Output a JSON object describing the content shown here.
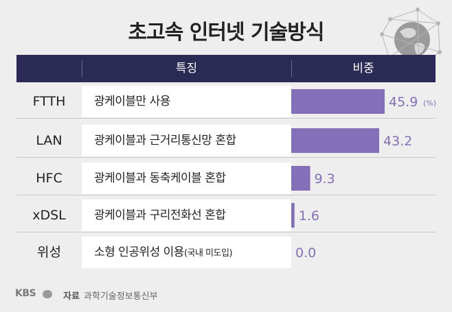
{
  "title": "초고속 인터넷 기술방식",
  "header": {
    "feature": "특징",
    "share": "비중"
  },
  "rows": [
    {
      "name": "FTTH",
      "feature": "광케이블만 사용",
      "feature_note": "",
      "value_label": "45.9",
      "unit": "(%)"
    },
    {
      "name": "LAN",
      "feature": "광케이블과 근거리통신망 혼합",
      "feature_note": "",
      "value_label": "43.2",
      "unit": ""
    },
    {
      "name": "HFC",
      "feature": "광케이블과 동축케이블 혼합",
      "feature_note": "",
      "value_label": "9.3",
      "unit": ""
    },
    {
      "name": "xDSL",
      "feature": "광케이블과 구리전화선 혼합",
      "feature_note": "",
      "value_label": "1.6",
      "unit": ""
    },
    {
      "name": "위성",
      "feature": "소형 인공위성 이용",
      "feature_note": "(국내 미도입)",
      "value_label": "0.0",
      "unit": ""
    }
  ],
  "chart_data": {
    "type": "bar",
    "orientation": "horizontal",
    "title": "초고속 인터넷 기술방식",
    "categories": [
      "FTTH",
      "LAN",
      "HFC",
      "xDSL",
      "위성"
    ],
    "values": [
      45.9,
      43.2,
      9.3,
      1.6,
      0.0
    ],
    "unit": "%",
    "xlim": [
      0,
      50
    ],
    "color": "#8470b8"
  },
  "footer": {
    "logo": "KBS",
    "source_label": "자료",
    "source": "과학기술정보통신부"
  },
  "colors": {
    "header_bg": "#2b2a55",
    "bar": "#8470b8",
    "background": "#eeeeee"
  }
}
